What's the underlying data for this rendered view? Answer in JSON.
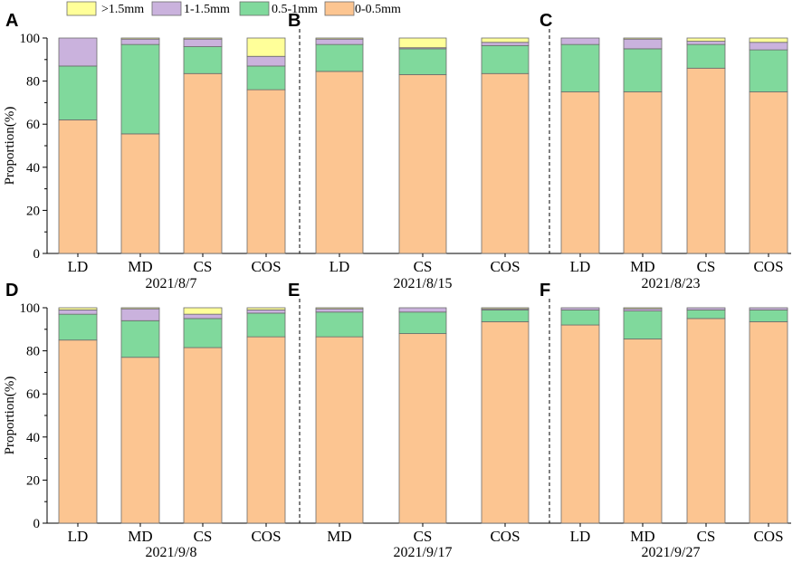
{
  "chart_data": {
    "type": "bar",
    "stacked": true,
    "ylabel": "Proportion(%)",
    "ylim": [
      0,
      100
    ],
    "yticks": [
      0,
      20,
      40,
      60,
      80,
      100
    ],
    "legend": [
      {
        "label": ">1.5mm",
        "color": "#ffff99"
      },
      {
        "label": "1-1.5mm",
        "color": "#cab2dd"
      },
      {
        "label": "0.5-1mm",
        "color": "#80d99c"
      },
      {
        "label": "0-0.5mm",
        "color": "#fcc591"
      }
    ],
    "series_order": [
      "0-0.5mm",
      "0.5-1mm",
      "1-1.5mm",
      ">1.5mm"
    ],
    "series_colors": [
      "#fcc591",
      "#80d99c",
      "#cab2dd",
      "#ffff99"
    ],
    "rows": [
      {
        "date_label_a": "2021/8/7",
        "date_label_b": "2021/8/15",
        "date_label_c": "2021/8/23",
        "panels": [
          {
            "letter": "A",
            "categories": [
              "LD",
              "MD",
              "CS",
              "COS"
            ],
            "values": [
              [
                62,
                25,
                13,
                0
              ],
              [
                55.5,
                41.5,
                2.5,
                0.5
              ],
              [
                83.5,
                12.5,
                3.5,
                0.5
              ],
              [
                76,
                11,
                4.5,
                8.5
              ]
            ]
          },
          {
            "letter": "B",
            "categories": [
              "LD",
              "CS",
              "COS"
            ],
            "values": [
              [
                84.5,
                12.5,
                2.5,
                0.5
              ],
              [
                83,
                12,
                0.5,
                4.5
              ],
              [
                83.5,
                13,
                1.5,
                2
              ]
            ]
          },
          {
            "letter": "C",
            "categories": [
              "LD",
              "MD",
              "CS",
              "COS"
            ],
            "values": [
              [
                75,
                22,
                3,
                0
              ],
              [
                75,
                20,
                4.5,
                0.5
              ],
              [
                86,
                11,
                1.5,
                1.5
              ],
              [
                75,
                19.5,
                3.5,
                2
              ]
            ]
          }
        ]
      },
      {
        "date_label_a": "2021/9/8",
        "date_label_b": "2021/9/17",
        "date_label_c": "2021/9/27",
        "panels": [
          {
            "letter": "D",
            "categories": [
              "LD",
              "MD",
              "CS",
              "COS"
            ],
            "values": [
              [
                85,
                12,
                2,
                1
              ],
              [
                77,
                17,
                5.5,
                0.5
              ],
              [
                81.5,
                13.5,
                2,
                3
              ],
              [
                86.5,
                11,
                1.5,
                1
              ]
            ]
          },
          {
            "letter": "E",
            "categories": [
              "MD",
              "CS",
              "COS"
            ],
            "values": [
              [
                86.5,
                11.5,
                1.5,
                0.5
              ],
              [
                88,
                10,
                2,
                0
              ],
              [
                93.5,
                5.5,
                0.5,
                0.5
              ]
            ]
          },
          {
            "letter": "F",
            "categories": [
              "LD",
              "MD",
              "CS",
              "COS"
            ],
            "values": [
              [
                92,
                7,
                1,
                0
              ],
              [
                85.5,
                13,
                1,
                0.5
              ],
              [
                95,
                4,
                1,
                0
              ],
              [
                93.5,
                5.5,
                1,
                0
              ]
            ]
          }
        ]
      }
    ]
  }
}
